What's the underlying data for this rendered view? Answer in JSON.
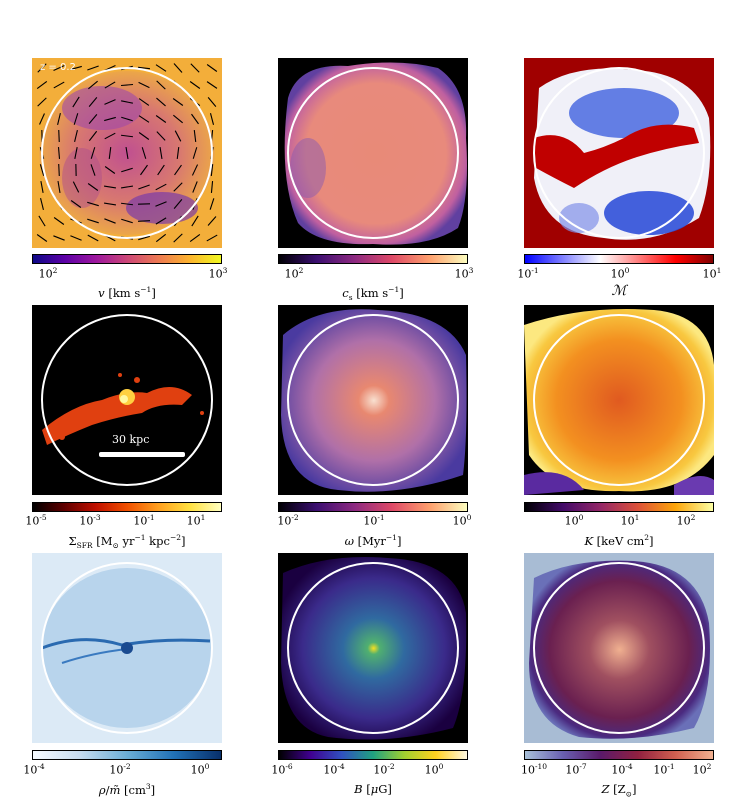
{
  "panels": [
    {
      "id": "velocity",
      "label": "v [km s⁻¹]",
      "ticks": [
        "10",
        "10",
        "10"
      ],
      "tick_exps": [
        "2",
        "3"
      ],
      "corner": "z = 0.2"
    },
    {
      "id": "sound-speed",
      "label": "cₛ [km s⁻¹]"
    },
    {
      "id": "mach",
      "label": "ℳ"
    },
    {
      "id": "sfr",
      "label": "Σ_SFR [M⊙ yr⁻¹ kpc⁻²]",
      "scale_bar": "30 kpc"
    },
    {
      "id": "vorticity",
      "label": "ω [Myr⁻¹]"
    },
    {
      "id": "entropy",
      "label": "K [keV cm²]"
    },
    {
      "id": "density",
      "label": "ρ/m̃ [cm³]"
    },
    {
      "id": "magnetic",
      "label": "B [μG]"
    },
    {
      "id": "metallicity",
      "label": "Z [Z⊙]"
    }
  ],
  "labels": {
    "v": "v [km s",
    "cs": "c",
    "mach": "ℳ",
    "sfr": "Σ",
    "omega": "ω [Myr",
    "K": "K [keV cm",
    "rho": "ρ/m̃ [cm",
    "B": "B [μG]",
    "Z": "Z [Z"
  },
  "corner_text": "z = 0.2",
  "scale_bar_text": "30 kpc",
  "colorbars": {
    "v": {
      "min_exp": "2",
      "max_exp": "3"
    },
    "cs": {
      "min_exp": "2",
      "max_exp": "3"
    },
    "mach": {
      "ticks": [
        "-1",
        "0",
        "1"
      ]
    },
    "sfr": {
      "ticks": [
        "-5",
        "-3",
        "-1",
        "1"
      ]
    },
    "omega": {
      "ticks": [
        "-2",
        "-1",
        "0"
      ]
    },
    "K": {
      "ticks": [
        "0",
        "1",
        "2"
      ]
    },
    "rho": {
      "ticks": [
        "-4",
        "-2",
        "0"
      ]
    },
    "B": {
      "ticks": [
        "-6",
        "-4",
        "-2",
        "0"
      ]
    },
    "Z": {
      "ticks": [
        "-10",
        "-7",
        "-4",
        "-1",
        "2"
      ]
    }
  },
  "colors": {
    "plasma_mid": "#c86a8a",
    "magma_dark": "#1a0a2a",
    "circle": "#ffffff"
  }
}
